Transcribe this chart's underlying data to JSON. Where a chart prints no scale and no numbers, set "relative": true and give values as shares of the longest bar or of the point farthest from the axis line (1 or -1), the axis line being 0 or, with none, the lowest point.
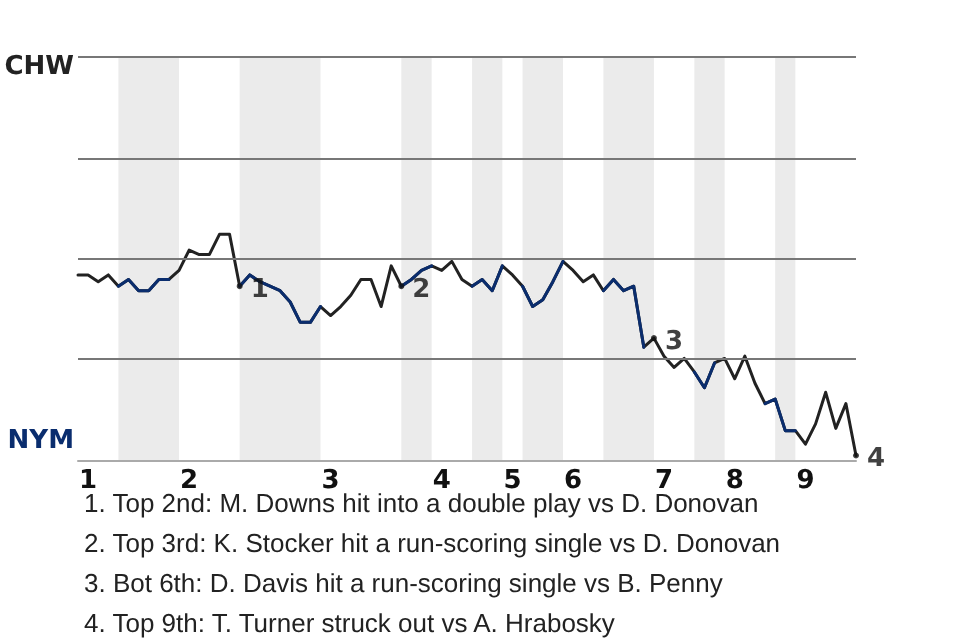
{
  "chart_data": {
    "type": "line",
    "relative": true,
    "categories": [
      null,
      "1",
      null,
      null,
      null,
      null,
      null,
      null,
      null,
      null,
      null,
      "2",
      null,
      null,
      null,
      null,
      null,
      null,
      null,
      null,
      null,
      null,
      null,
      null,
      null,
      "3",
      null,
      null,
      null,
      null,
      null,
      null,
      null,
      null,
      null,
      null,
      "4",
      null,
      null,
      null,
      null,
      null,
      null,
      "5",
      null,
      null,
      null,
      null,
      null,
      "6",
      null,
      null,
      null,
      null,
      null,
      null,
      null,
      null,
      "7",
      null,
      null,
      null,
      null,
      null,
      null,
      "8",
      null,
      null,
      null,
      null,
      null,
      null,
      "9",
      null,
      null,
      null,
      null,
      null
    ],
    "series": [
      {
        "color": "#222222",
        "values": [
          0.82,
          0.82,
          0.79,
          0.82,
          0.77,
          0.8,
          0.75,
          0.75,
          0.8,
          0.8,
          0.84,
          0.93,
          0.91,
          0.91,
          1,
          1,
          0.77,
          0.82,
          0.79,
          0.77,
          0.75,
          0.7,
          0.61,
          0.61,
          0.68,
          0.64,
          0.68,
          0.73,
          0.8,
          0.8,
          0.68,
          0.86,
          0.77,
          0.8,
          0.84,
          0.86,
          0.84,
          0.88,
          0.8,
          0.77,
          0.8,
          0.75,
          0.86,
          0.82,
          0.77,
          0.68,
          0.71,
          0.79,
          0.88,
          0.84,
          0.79,
          0.82,
          0.75,
          0.8,
          0.75,
          0.77,
          0.5,
          0.54,
          0.46,
          0.41,
          0.45,
          0.39,
          0.32,
          0.43,
          0.45,
          0.36,
          0.46,
          0.34,
          0.25,
          0.27,
          0.13,
          0.13,
          0.07,
          0.16,
          0.3,
          0.14,
          0.25,
          0.02
        ],
        "line_style": "solid"
      },
      {
        "color": "#0a2d6e",
        "values": [
          null,
          null,
          null,
          null,
          0.77,
          0.8,
          0.75,
          0.75,
          0.8,
          0.8,
          null,
          null,
          null,
          null,
          null,
          null,
          0.77,
          0.82,
          0.79,
          0.77,
          0.75,
          0.7,
          0.61,
          0.61,
          0.68,
          null,
          null,
          null,
          null,
          null,
          null,
          null,
          0.77,
          0.8,
          0.84,
          0.86,
          null,
          null,
          null,
          0.77,
          0.8,
          0.75,
          0.86,
          null,
          0.77,
          0.68,
          0.71,
          0.79,
          0.88,
          null,
          null,
          null,
          0.75,
          0.8,
          0.75,
          0.77,
          0.5,
          null,
          null,
          null,
          null,
          0.39,
          0.32,
          0.43,
          null,
          null,
          null,
          null,
          0.25,
          0.27,
          0.13,
          0.13,
          null,
          null,
          null,
          null,
          null,
          null
        ]
      },
      {
        "type": "scatter",
        "name": "1",
        "color": "#111111",
        "values": [
          null,
          null,
          null,
          null,
          null,
          null,
          null,
          null,
          null,
          null,
          null,
          null,
          null,
          null,
          null,
          null,
          0.77,
          null,
          null,
          null,
          null,
          null,
          null,
          null,
          null,
          null,
          null,
          null,
          null,
          null,
          null,
          null,
          null,
          null,
          null,
          null,
          null,
          null,
          null,
          null,
          null,
          null,
          null,
          null,
          null,
          null,
          null,
          null,
          null,
          null,
          null,
          null,
          null,
          null,
          null,
          null,
          null,
          null,
          null,
          null,
          null,
          null,
          null,
          null,
          null,
          null,
          null,
          null,
          null,
          null,
          null,
          null,
          null,
          null,
          null,
          null,
          null,
          null
        ]
      },
      {
        "type": "scatter",
        "name": "2",
        "color": "#111111",
        "values": [
          null,
          null,
          null,
          null,
          null,
          null,
          null,
          null,
          null,
          null,
          null,
          null,
          null,
          null,
          null,
          null,
          null,
          null,
          null,
          null,
          null,
          null,
          null,
          null,
          null,
          null,
          null,
          null,
          null,
          null,
          null,
          null,
          0.77,
          null,
          null,
          null,
          null,
          null,
          null,
          null,
          null,
          null,
          null,
          null,
          null,
          null,
          null,
          null,
          null,
          null,
          null,
          null,
          null,
          null,
          null,
          null,
          null,
          null,
          null,
          null,
          null,
          null,
          null,
          null,
          null,
          null,
          null,
          null,
          null,
          null,
          null,
          null,
          null,
          null,
          null,
          null,
          null,
          null
        ]
      },
      {
        "type": "scatter",
        "name": "3",
        "color": "#111111",
        "values": [
          null,
          null,
          null,
          null,
          null,
          null,
          null,
          null,
          null,
          null,
          null,
          null,
          null,
          null,
          null,
          null,
          null,
          null,
          null,
          null,
          null,
          null,
          null,
          null,
          null,
          null,
          null,
          null,
          null,
          null,
          null,
          null,
          null,
          null,
          null,
          null,
          null,
          null,
          null,
          null,
          null,
          null,
          null,
          null,
          null,
          null,
          null,
          null,
          null,
          null,
          null,
          null,
          null,
          null,
          null,
          null,
          null,
          0.54,
          null,
          null,
          null,
          null,
          null,
          null,
          null,
          null,
          null,
          null,
          null,
          null,
          null,
          null,
          null,
          null,
          null,
          null,
          null,
          null
        ]
      },
      {
        "type": "scatter",
        "name": "4",
        "color": "#111111",
        "values": [
          null,
          null,
          null,
          null,
          null,
          null,
          null,
          null,
          null,
          null,
          null,
          null,
          null,
          null,
          null,
          null,
          null,
          null,
          null,
          null,
          null,
          null,
          null,
          null,
          null,
          null,
          null,
          null,
          null,
          null,
          null,
          null,
          null,
          null,
          null,
          null,
          null,
          null,
          null,
          null,
          null,
          null,
          null,
          null,
          null,
          null,
          null,
          null,
          null,
          null,
          null,
          null,
          null,
          null,
          null,
          null,
          null,
          null,
          null,
          null,
          null,
          null,
          null,
          null,
          null,
          null,
          null,
          null,
          null,
          null,
          null,
          null,
          null,
          null,
          null,
          null,
          null,
          0.02
        ]
      }
    ],
    "marker": "none",
    "ref_lines": [
      {
        "axis": "y",
        "value": 0.45,
        "color": "#777777"
      },
      {
        "axis": "y",
        "value": 0.89,
        "color": "#777777"
      },
      {
        "axis": "y",
        "value": 1.34,
        "color": "#777777"
      },
      {
        "axis": "y",
        "value": 1.79,
        "color": "#777777"
      }
    ],
    "annotations": [
      "CHW",
      "NYM",
      "1. Top 2nd: M. Downs hit into a double play vs D. Donovan",
      "2. Top 3rd: K. Stocker hit a run-scoring single vs D. Donovan",
      "3. Bot 6th: D. Davis hit a run-scoring single vs B. Penny",
      "4. Top 9th: T. Turner struck out vs A. Hrabosky"
    ]
  }
}
